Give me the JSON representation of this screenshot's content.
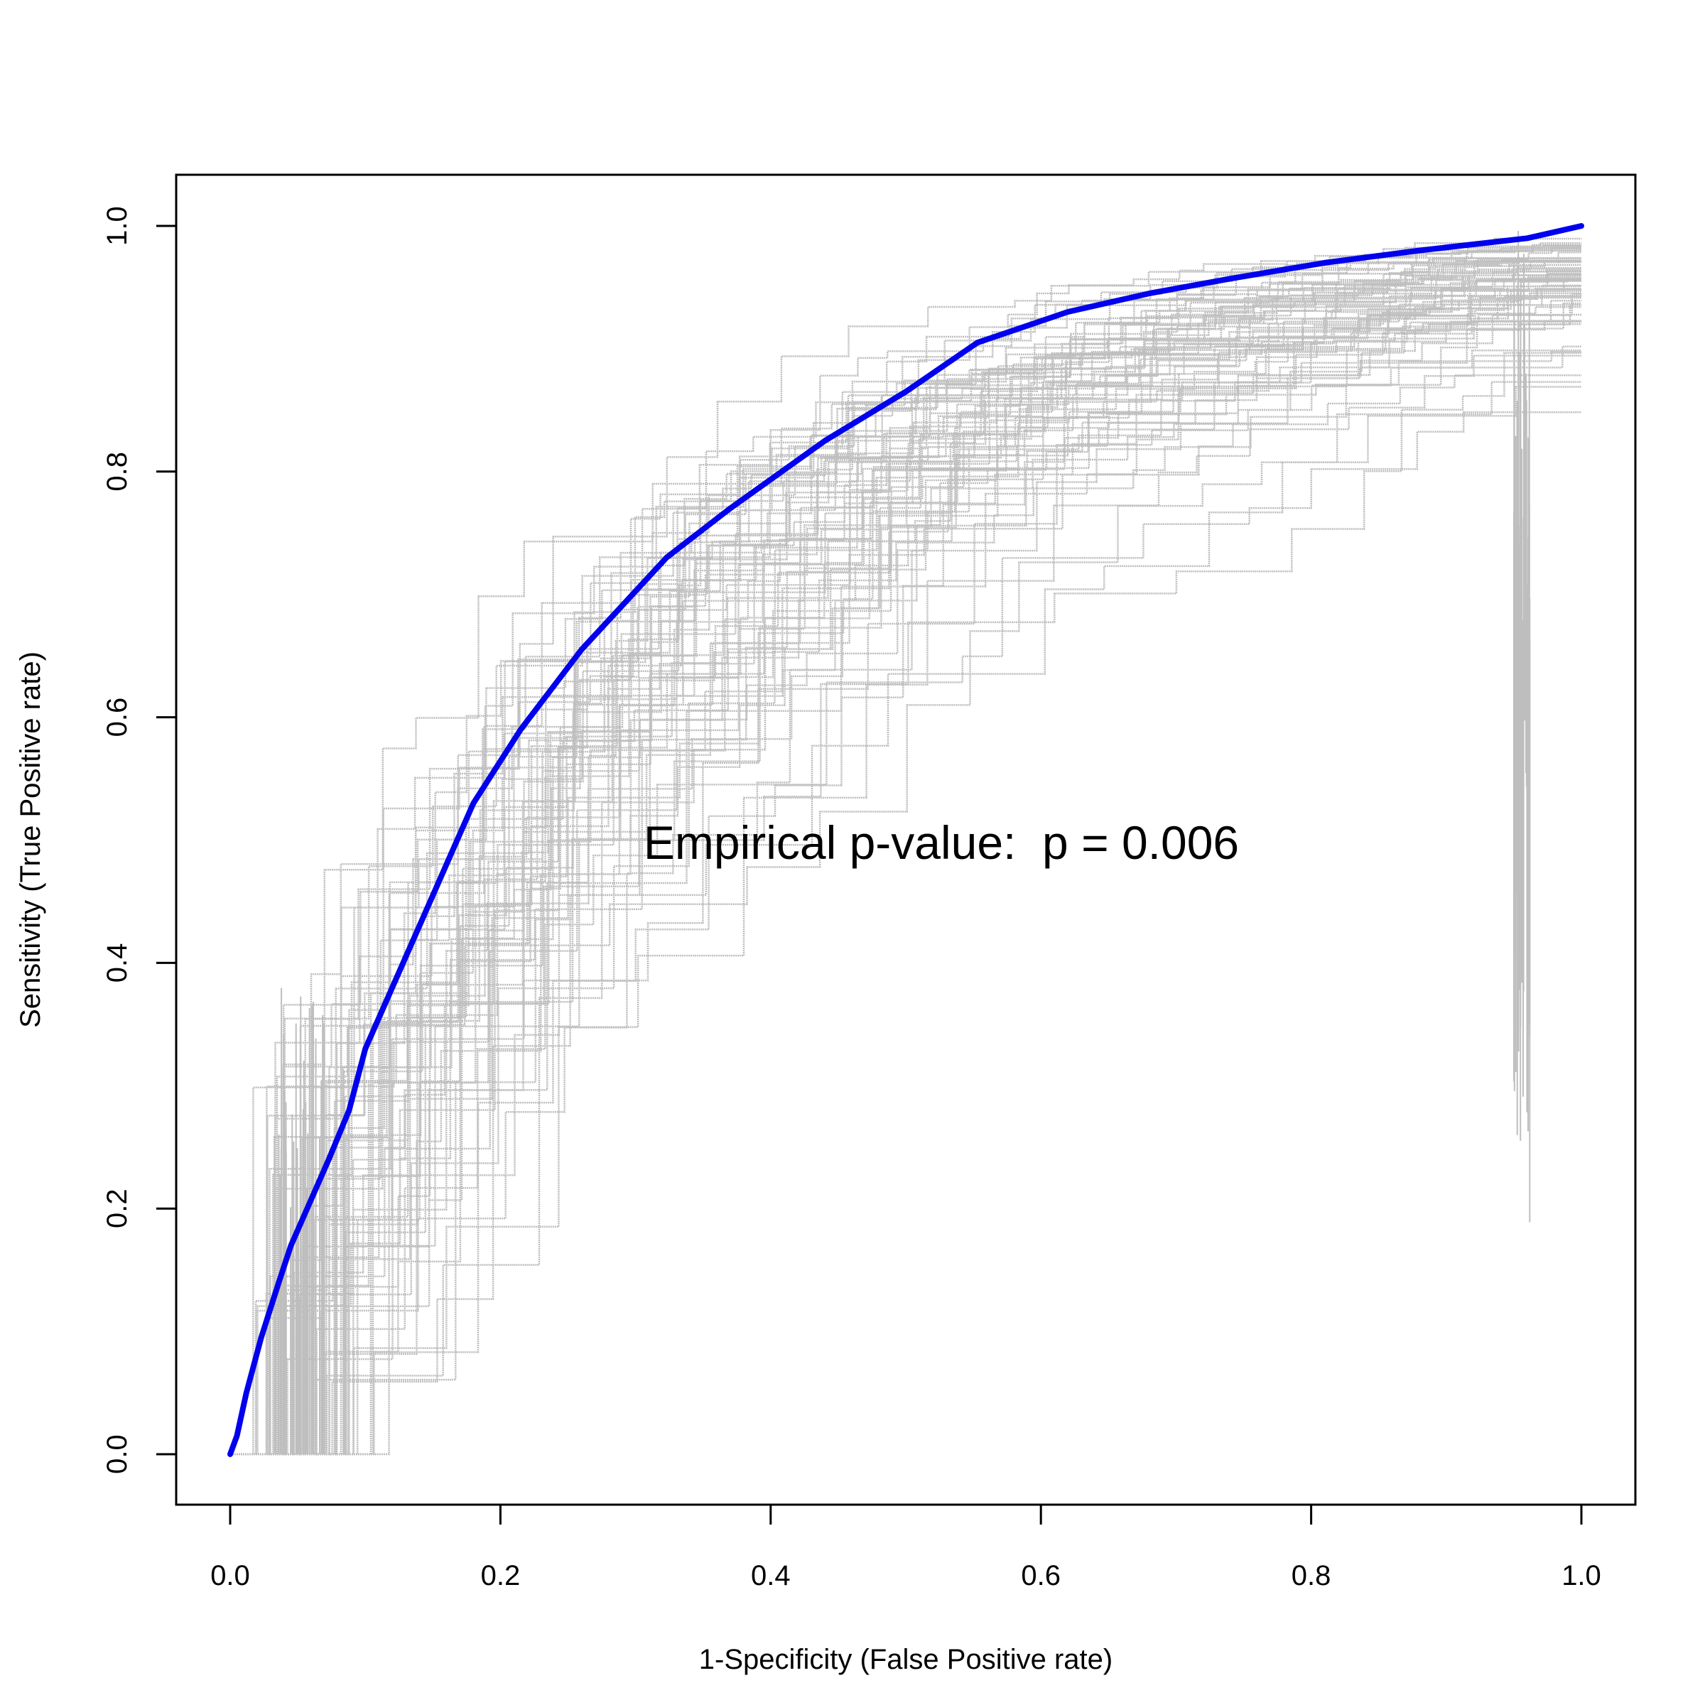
{
  "chart_data": {
    "type": "line",
    "title": "",
    "xlabel": "1-Specificity (False Positive rate)",
    "ylabel": "Sensitivity (True Positive rate)",
    "xlim": [
      0,
      1
    ],
    "ylim": [
      0,
      1
    ],
    "xticks": [
      "0.0",
      "0.2",
      "0.4",
      "0.6",
      "0.8",
      "1.0"
    ],
    "yticks": [
      "0.0",
      "0.2",
      "0.4",
      "0.6",
      "0.8",
      "1.0"
    ],
    "annotation": "Empirical p-value:  p = 0.006",
    "grid": false,
    "legend": "none",
    "colors": {
      "observed": "#0000ee",
      "permutations": "#bebebe",
      "axes": "#000000"
    },
    "permutation_curves": "grey step ROC curves from permuted labels",
    "series": [
      {
        "x": [
          0.0,
          0.005,
          0.012,
          0.023,
          0.036,
          0.045,
          0.057,
          0.073,
          0.088,
          0.1,
          0.12,
          0.14,
          0.16,
          0.18,
          0.215,
          0.26,
          0.323,
          0.37,
          0.44,
          0.5,
          0.553,
          0.62,
          0.68,
          0.74,
          0.81,
          0.88,
          0.96,
          1.0
        ],
        "y": [
          0.0,
          0.015,
          0.05,
          0.095,
          0.14,
          0.17,
          0.2,
          0.24,
          0.28,
          0.33,
          0.38,
          0.43,
          0.48,
          0.53,
          0.59,
          0.655,
          0.73,
          0.77,
          0.825,
          0.865,
          0.905,
          0.93,
          0.945,
          0.957,
          0.97,
          0.98,
          0.99,
          1.0
        ]
      }
    ]
  }
}
